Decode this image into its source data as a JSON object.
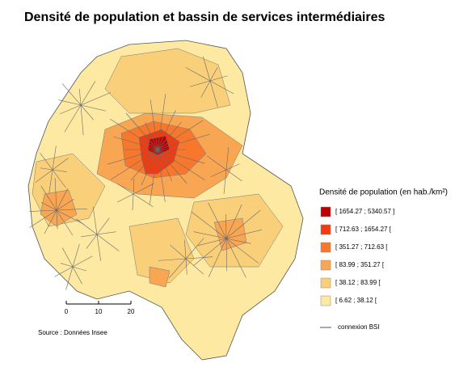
{
  "title": "Densité de population et bassin de services intermédiaires",
  "legend": {
    "title": "Densité de population (en hab./km²)",
    "classes": [
      {
        "label": "[ 1654.27 ; 5340.57 ]",
        "color": "#c00000"
      },
      {
        "label": "[ 712.63 ; 1654.27 [",
        "color": "#f03c12"
      },
      {
        "label": "[ 351.27 ; 712.63 [",
        "color": "#f7782c"
      },
      {
        "label": "[ 83.99 ; 351.27 [",
        "color": "#f9a653"
      },
      {
        "label": "[ 38.12 ; 83.99 [",
        "color": "#f9cf7a"
      },
      {
        "label": "[ 6.62 ; 38.12 [",
        "color": "#fde9a2"
      }
    ],
    "connection": "connexion BSI"
  },
  "scale": {
    "ticks": [
      "0",
      "10",
      "20"
    ]
  },
  "source": "Source : Données Insee"
}
